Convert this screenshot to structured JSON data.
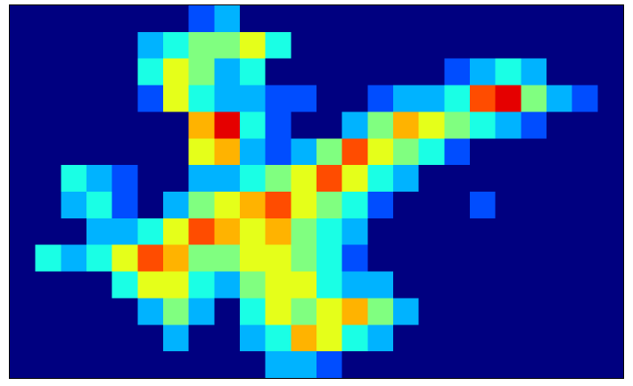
{
  "chart_data": {
    "type": "heatmap",
    "cmap": "jet",
    "zlim": [
      0,
      10
    ],
    "values": [
      [
        0,
        0,
        0,
        0,
        0,
        0,
        0,
        2,
        3,
        0,
        0,
        0,
        0,
        0,
        0,
        0,
        0,
        0,
        0,
        0,
        0,
        0,
        0,
        0
      ],
      [
        0,
        0,
        0,
        0,
        0,
        3,
        4,
        5,
        5,
        6,
        4,
        0,
        0,
        0,
        0,
        0,
        0,
        0,
        0,
        0,
        0,
        0,
        0,
        0
      ],
      [
        0,
        0,
        0,
        0,
        0,
        4,
        6,
        5,
        3,
        4,
        0,
        0,
        0,
        0,
        0,
        0,
        0,
        2,
        3,
        4,
        3,
        0,
        0,
        0
      ],
      [
        0,
        0,
        0,
        0,
        0,
        2,
        6,
        4,
        3,
        3,
        2,
        2,
        0,
        0,
        2,
        3,
        3,
        4,
        8,
        9,
        5,
        3,
        2,
        0
      ],
      [
        0,
        0,
        0,
        0,
        0,
        0,
        0,
        7,
        9,
        4,
        2,
        0,
        0,
        3,
        5,
        7,
        6,
        5,
        4,
        3,
        2,
        0,
        0,
        0
      ],
      [
        0,
        0,
        0,
        0,
        0,
        0,
        0,
        6,
        7,
        3,
        2,
        3,
        5,
        8,
        6,
        5,
        4,
        2,
        0,
        0,
        0,
        0,
        0,
        0
      ],
      [
        0,
        0,
        4,
        3,
        2,
        0,
        0,
        3,
        3,
        4,
        5,
        6,
        8,
        6,
        4,
        3,
        0,
        0,
        0,
        0,
        0,
        0,
        0,
        0
      ],
      [
        0,
        0,
        3,
        4,
        2,
        0,
        3,
        5,
        6,
        7,
        8,
        6,
        5,
        4,
        2,
        0,
        0,
        0,
        2,
        0,
        0,
        0,
        0,
        0
      ],
      [
        0,
        0,
        0,
        3,
        3,
        4,
        6,
        8,
        7,
        6,
        7,
        5,
        4,
        3,
        0,
        0,
        0,
        0,
        0,
        0,
        0,
        0,
        0,
        0
      ],
      [
        0,
        4,
        3,
        4,
        6,
        8,
        7,
        5,
        5,
        6,
        6,
        5,
        4,
        2,
        0,
        0,
        0,
        0,
        0,
        0,
        0,
        0,
        0,
        0
      ],
      [
        0,
        0,
        0,
        0,
        4,
        6,
        6,
        4,
        3,
        5,
        6,
        6,
        4,
        3,
        3,
        0,
        0,
        0,
        0,
        0,
        0,
        0,
        0,
        0
      ],
      [
        0,
        0,
        0,
        0,
        0,
        3,
        5,
        3,
        0,
        4,
        6,
        5,
        6,
        7,
        5,
        3,
        0,
        0,
        0,
        0,
        0,
        0,
        0,
        0
      ],
      [
        0,
        0,
        0,
        0,
        0,
        0,
        3,
        0,
        0,
        3,
        4,
        7,
        6,
        4,
        3,
        0,
        0,
        0,
        0,
        0,
        0,
        0,
        0,
        0
      ],
      [
        0,
        0,
        0,
        0,
        0,
        0,
        0,
        0,
        0,
        0,
        3,
        3,
        2,
        0,
        0,
        0,
        0,
        0,
        0,
        0,
        0,
        0,
        0,
        0
      ]
    ]
  }
}
